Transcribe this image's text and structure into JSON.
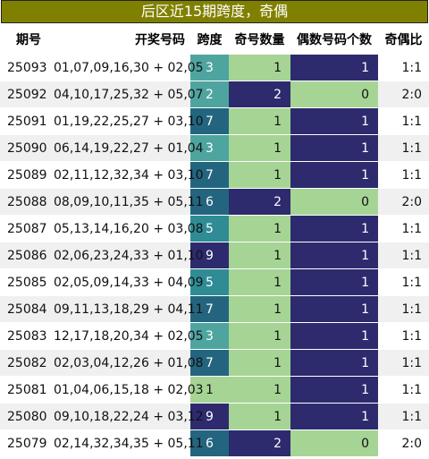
{
  "title": "后区近15期跨度，奇偶",
  "headers": {
    "issue": "期号",
    "numbers": "开奖号码",
    "span": "跨度",
    "odd_count": "奇号数量",
    "even_count": "偶数号码个数",
    "ratio": "奇偶比"
  },
  "colors": {
    "title_bg": "#808000",
    "navy": "#2d2b6e",
    "light_green": "#a6d494",
    "span_green": "#a6d494",
    "span_teal_light": "#4ea5a0",
    "span_teal_mid": "#2f8c94",
    "span_blue": "#23657e",
    "span_navy": "#2d2b6e"
  },
  "rows": [
    {
      "issue": "25093",
      "numbers": "01,07,09,16,30 + 02,05",
      "span": "3",
      "odd": "1",
      "even": "1",
      "ratio": "1:1"
    },
    {
      "issue": "25092",
      "numbers": "04,10,17,25,32 + 05,07",
      "span": "2",
      "odd": "2",
      "even": "0",
      "ratio": "2:0"
    },
    {
      "issue": "25091",
      "numbers": "01,19,22,25,27 + 03,10",
      "span": "7",
      "odd": "1",
      "even": "1",
      "ratio": "1:1"
    },
    {
      "issue": "25090",
      "numbers": "06,14,19,22,27 + 01,04",
      "span": "3",
      "odd": "1",
      "even": "1",
      "ratio": "1:1"
    },
    {
      "issue": "25089",
      "numbers": "02,11,12,32,34 + 03,10",
      "span": "7",
      "odd": "1",
      "even": "1",
      "ratio": "1:1"
    },
    {
      "issue": "25088",
      "numbers": "08,09,10,11,35 + 05,11",
      "span": "6",
      "odd": "2",
      "even": "0",
      "ratio": "2:0"
    },
    {
      "issue": "25087",
      "numbers": "05,13,14,16,20 + 03,08",
      "span": "5",
      "odd": "1",
      "even": "1",
      "ratio": "1:1"
    },
    {
      "issue": "25086",
      "numbers": "02,06,23,24,33 + 01,10",
      "span": "9",
      "odd": "1",
      "even": "1",
      "ratio": "1:1"
    },
    {
      "issue": "25085",
      "numbers": "02,05,09,14,33 + 04,09",
      "span": "5",
      "odd": "1",
      "even": "1",
      "ratio": "1:1"
    },
    {
      "issue": "25084",
      "numbers": "09,11,13,18,29 + 04,11",
      "span": "7",
      "odd": "1",
      "even": "1",
      "ratio": "1:1"
    },
    {
      "issue": "25083",
      "numbers": "12,17,18,20,34 + 02,05",
      "span": "3",
      "odd": "1",
      "even": "1",
      "ratio": "1:1"
    },
    {
      "issue": "25082",
      "numbers": "02,03,04,12,26 + 01,08",
      "span": "7",
      "odd": "1",
      "even": "1",
      "ratio": "1:1"
    },
    {
      "issue": "25081",
      "numbers": "01,04,06,15,18 + 02,03",
      "span": "1",
      "odd": "1",
      "even": "1",
      "ratio": "1:1"
    },
    {
      "issue": "25080",
      "numbers": "09,10,18,22,24 + 03,12",
      "span": "9",
      "odd": "1",
      "even": "1",
      "ratio": "1:1"
    },
    {
      "issue": "25079",
      "numbers": "02,14,32,34,35 + 05,11",
      "span": "6",
      "odd": "2",
      "even": "0",
      "ratio": "2:0"
    }
  ]
}
